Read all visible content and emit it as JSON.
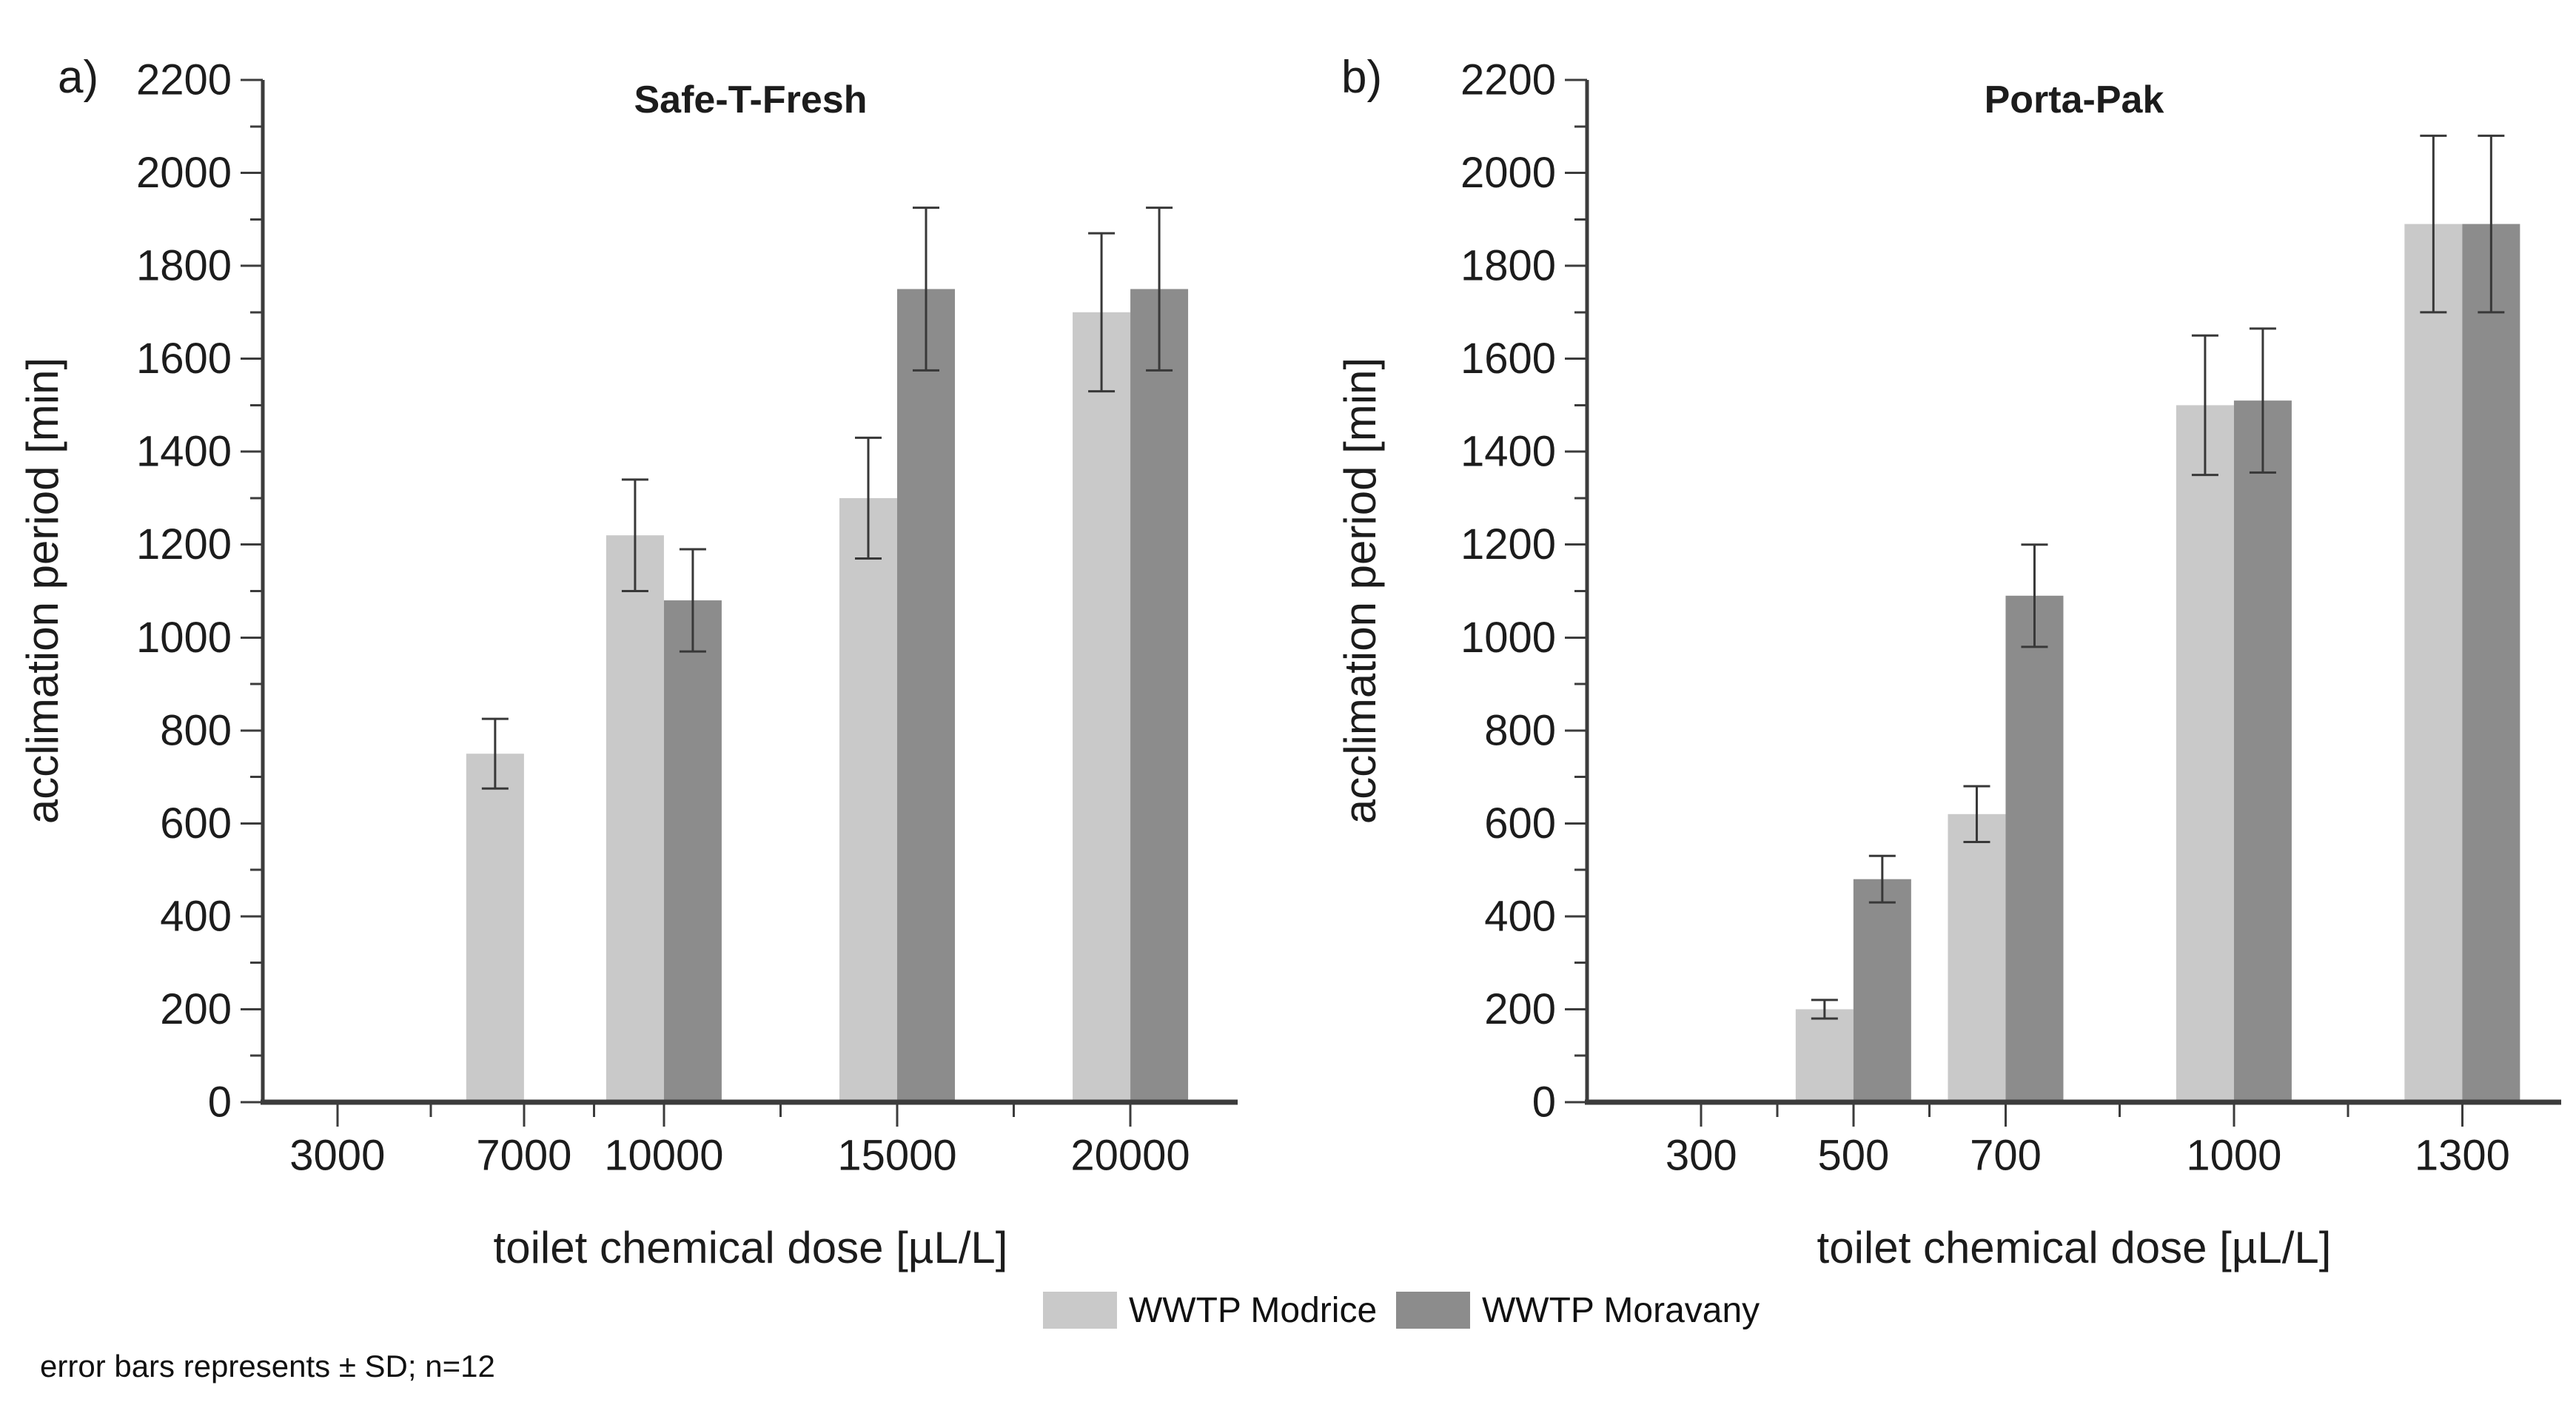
{
  "panels": [
    {
      "letter": "a)"
    },
    {
      "letter": "b)"
    }
  ],
  "legend": {
    "items": [
      {
        "label": "WWTP Modrice",
        "color": "#c9c9c9"
      },
      {
        "label": "WWTP Moravany",
        "color": "#8c8c8c"
      }
    ]
  },
  "footnote": "error bars represents ± SD; n=12",
  "colors": {
    "series_light": "#c9c9c9",
    "series_dark": "#8c8c8c",
    "axis_line": "#3c3c3c",
    "error_bar": "#383838",
    "text": "#1c1c1c"
  },
  "chart_data": [
    {
      "type": "bar",
      "title": "Safe-T-Fresh",
      "xlabel": "toilet chemical dose [µL/L]",
      "ylabel": "acclimation period [min]",
      "ylim": [
        0,
        2200
      ],
      "yticks": [
        0,
        200,
        400,
        600,
        800,
        1000,
        1200,
        1400,
        1600,
        1800,
        2000,
        2200
      ],
      "ytick_minor_step": 100,
      "grid": false,
      "legend_position": "bottom-center",
      "categories": [
        3000,
        7000,
        10000,
        15000,
        20000
      ],
      "xticks_minor": [
        5000,
        8500,
        12500,
        17500
      ],
      "xlim": [
        1400,
        22300
      ],
      "series": [
        {
          "name": "WWTP Modrice",
          "color": "#c9c9c9",
          "values": [
            null,
            750,
            1220,
            1300,
            1700
          ],
          "sd": [
            null,
            75,
            120,
            130,
            170
          ]
        },
        {
          "name": "WWTP Moravany",
          "color": "#8c8c8c",
          "values": [
            null,
            null,
            1080,
            1750,
            1750
          ],
          "sd": [
            null,
            null,
            110,
            175,
            175
          ]
        }
      ]
    },
    {
      "type": "bar",
      "title": "Porta-Pak",
      "xlabel": "toilet chemical dose [µL/L]",
      "ylabel": "acclimation period [min]",
      "ylim": [
        0,
        2200
      ],
      "yticks": [
        0,
        200,
        400,
        600,
        800,
        1000,
        1200,
        1400,
        1600,
        1800,
        2000,
        2200
      ],
      "ytick_minor_step": 100,
      "grid": false,
      "legend_position": "bottom-center",
      "categories": [
        300,
        500,
        700,
        1000,
        1300
      ],
      "xticks_minor": [
        400,
        600,
        850,
        1150
      ],
      "xlim": [
        150,
        1430
      ],
      "series": [
        {
          "name": "WWTP Modrice",
          "color": "#c9c9c9",
          "values": [
            null,
            200,
            620,
            1500,
            1890
          ],
          "sd": [
            null,
            20,
            60,
            150,
            190
          ]
        },
        {
          "name": "WWTP Moravany",
          "color": "#8c8c8c",
          "values": [
            null,
            480,
            1090,
            1510,
            1890
          ],
          "sd": [
            null,
            50,
            110,
            155,
            190
          ]
        }
      ]
    }
  ]
}
